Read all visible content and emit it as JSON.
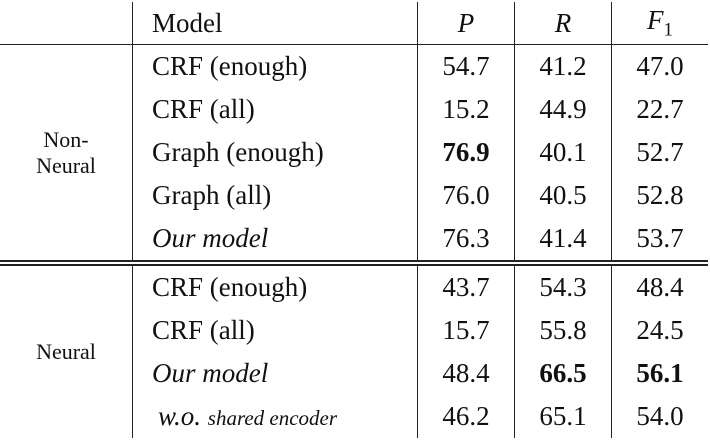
{
  "table": {
    "header": {
      "model": "Model",
      "columns": [
        {
          "text": "P",
          "italic": true
        },
        {
          "text": "R",
          "italic": true
        },
        {
          "text": "F",
          "subscript": "1",
          "italic": true
        }
      ]
    },
    "groups": [
      {
        "label": "Non-Neural",
        "rows": [
          {
            "model": "CRF (enough)",
            "values": [
              "54.7",
              "41.2",
              "47.0"
            ]
          },
          {
            "model": "CRF (all)",
            "values": [
              "15.2",
              "44.9",
              "22.7"
            ]
          },
          {
            "model": "Graph (enough)",
            "values": [
              "76.9",
              "40.1",
              "52.7"
            ],
            "bold": [
              0
            ]
          },
          {
            "model": "Graph (all)",
            "values": [
              "76.0",
              "40.5",
              "52.8"
            ]
          },
          {
            "model": "Our model",
            "italic": true,
            "values": [
              "76.3",
              "41.4",
              "53.7"
            ]
          }
        ]
      },
      {
        "label": "Neural",
        "rows": [
          {
            "model": "CRF (enough)",
            "values": [
              "43.7",
              "54.3",
              "48.4"
            ]
          },
          {
            "model": "CRF (all)",
            "values": [
              "15.7",
              "55.8",
              "24.5"
            ]
          },
          {
            "model": "Our model",
            "italic": true,
            "values": [
              "48.4",
              "66.5",
              "56.1"
            ],
            "bold": [
              1,
              2
            ]
          },
          {
            "model": "w.o.",
            "model_note": "shared encoder",
            "italic": true,
            "values": [
              "46.2",
              "65.1",
              "54.0"
            ]
          }
        ]
      }
    ]
  }
}
